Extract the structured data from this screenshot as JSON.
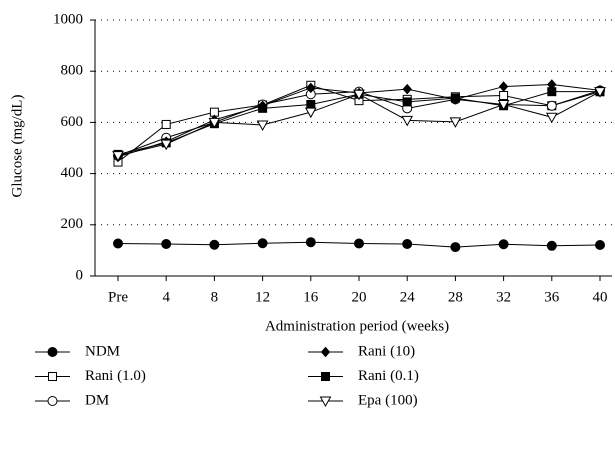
{
  "chart_data": {
    "type": "line",
    "y_label": "Glucose (mg/dL)",
    "x_label": "Administration period (weeks)",
    "categories": [
      "Pre",
      "4",
      "8",
      "12",
      "16",
      "20",
      "24",
      "28",
      "32",
      "36",
      "40"
    ],
    "ylim": [
      0,
      1000
    ],
    "yticks": [
      0,
      200,
      400,
      600,
      800,
      1000
    ],
    "grid": true,
    "series": [
      {
        "name": "NDM",
        "color": "#000000",
        "marker": "circle",
        "filled": true,
        "values": [
          127,
          125,
          122,
          128,
          132,
          127,
          125,
          113,
          124,
          118,
          121
        ]
      },
      {
        "name": "Rani (1.0)",
        "color": "#000000",
        "marker": "square",
        "filled": false,
        "values": [
          445,
          592,
          640,
          668,
          745,
          685,
          690,
          700,
          705,
          665,
          720
        ]
      },
      {
        "name": "DM",
        "color": "#000000",
        "marker": "circle",
        "filled": false,
        "values": [
          470,
          540,
          600,
          670,
          710,
          720,
          655,
          690,
          670,
          665,
          725
        ]
      },
      {
        "name": "Rani (10)",
        "color": "#000000",
        "marker": "diamond",
        "filled": true,
        "values": [
          465,
          525,
          610,
          665,
          735,
          715,
          730,
          690,
          740,
          748,
          725
        ]
      },
      {
        "name": "Rani (0.1)",
        "color": "#000000",
        "marker": "square",
        "filled": true,
        "values": [
          475,
          520,
          595,
          655,
          670,
          710,
          680,
          695,
          665,
          720,
          720
        ]
      },
      {
        "name": "Epa (100)",
        "color": "#000000",
        "marker": "triangle-down",
        "filled": false,
        "values": [
          470,
          515,
          600,
          590,
          640,
          710,
          608,
          602,
          670,
          620,
          720
        ]
      }
    ]
  }
}
